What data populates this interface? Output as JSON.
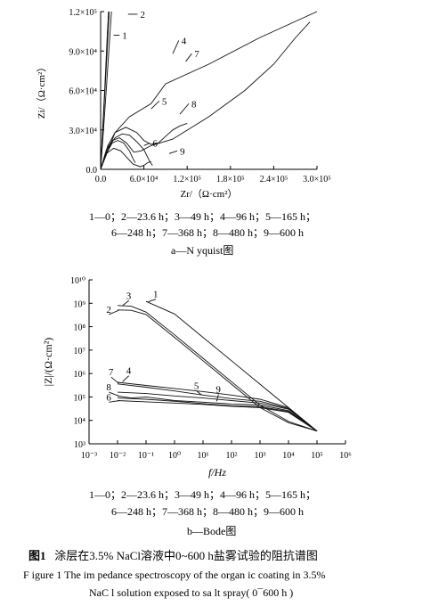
{
  "chart_data": [
    {
      "type": "line",
      "title": "a—N yquist图",
      "xlabel": "Zr/（Ω·cm²）",
      "ylabel": "Zi/（Ω·cm²）",
      "xlim": [
        0,
        300000
      ],
      "ylim": [
        0,
        120000
      ],
      "xticks": [
        "0.0",
        "6.0×10⁴",
        "1.2×10⁵",
        "1.8×10⁵",
        "2.4×10⁵",
        "3.0×10⁵"
      ],
      "yticks": [
        "0.0",
        "3.0×10⁴",
        "6.0×10⁴",
        "9.0×10⁴",
        "1.2×10⁵"
      ],
      "legend_lines": [
        "1—0；2—23.6 h；3—49 h；4—96 h；5—165 h；",
        "6—248 h；7—368 h；8—480 h；9—600 h"
      ],
      "series": [
        {
          "name": "1",
          "points": [
            [
              0,
              0
            ],
            [
              3000,
              30000
            ],
            [
              6000,
              60000
            ],
            [
              9000,
              90000
            ],
            [
              12000,
              120000
            ]
          ]
        },
        {
          "name": "2",
          "points": [
            [
              0,
              0
            ],
            [
              4000,
              30000
            ],
            [
              8000,
              62000
            ],
            [
              12000,
              95000
            ],
            [
              15000,
              120000
            ]
          ]
        },
        {
          "name": "3",
          "points": [
            [
              0,
              0
            ],
            [
              3000,
              32000
            ],
            [
              6000,
              65000
            ],
            [
              9000,
              100000
            ],
            [
              11000,
              120000
            ]
          ]
        },
        {
          "name": "4",
          "points": [
            [
              0,
              0
            ],
            [
              10000,
              14000
            ],
            [
              20000,
              28000
            ],
            [
              40000,
              40000
            ],
            [
              70000,
              50000
            ],
            [
              90000,
              65000
            ],
            [
              150000,
              80000
            ],
            [
              220000,
              100000
            ],
            [
              280000,
              115000
            ],
            [
              300000,
              120000
            ]
          ]
        },
        {
          "name": "5",
          "points": [
            [
              0,
              0
            ],
            [
              10000,
              16000
            ],
            [
              20000,
              24000
            ],
            [
              30000,
              27000
            ],
            [
              40000,
              26000
            ],
            [
              50000,
              21000
            ],
            [
              60000,
              15000
            ],
            [
              68000,
              6000
            ],
            [
              72000,
              3000
            ]
          ]
        },
        {
          "name": "6",
          "points": [
            [
              0,
              0
            ],
            [
              8000,
              12000
            ],
            [
              16000,
              20000
            ],
            [
              24000,
              22000
            ],
            [
              32000,
              20000
            ],
            [
              40000,
              14000
            ],
            [
              45000,
              8000
            ],
            [
              48000,
              5000
            ]
          ]
        },
        {
          "name": "7",
          "points": [
            [
              0,
              0
            ],
            [
              8000,
              15000
            ],
            [
              16000,
              22000
            ],
            [
              26000,
              24000
            ],
            [
              36000,
              20000
            ],
            [
              46000,
              13000
            ],
            [
              56000,
              14000
            ],
            [
              70000,
              18000
            ],
            [
              100000,
              23000
            ],
            [
              150000,
              40000
            ],
            [
              200000,
              60000
            ],
            [
              240000,
              80000
            ],
            [
              270000,
              100000
            ],
            [
              290000,
              112000
            ]
          ]
        },
        {
          "name": "8",
          "points": [
            [
              0,
              0
            ],
            [
              10000,
              18000
            ],
            [
              20000,
              28000
            ],
            [
              35000,
              32000
            ],
            [
              50000,
              28000
            ],
            [
              60000,
              22000
            ],
            [
              70000,
              19000
            ],
            [
              80000,
              20000
            ],
            [
              90000,
              25000
            ],
            [
              100000,
              30000
            ],
            [
              110000,
              33000
            ],
            [
              120000,
              35000
            ]
          ]
        },
        {
          "name": "9",
          "points": [
            [
              0,
              0
            ],
            [
              8000,
              12000
            ],
            [
              18000,
              16000
            ],
            [
              28000,
              14000
            ],
            [
              38000,
              8000
            ],
            [
              45000,
              4000
            ],
            [
              55000,
              2000
            ],
            [
              60000,
              3000
            ],
            [
              65000,
              5000
            ],
            [
              70000,
              6000
            ]
          ]
        }
      ]
    },
    {
      "type": "line",
      "title": "b—Bode图",
      "xlabel": "f/Hz",
      "ylabel": "|Z|/(Ω·cm²)",
      "log_x": true,
      "log_y": true,
      "xlim": [
        0.001,
        1000000
      ],
      "ylim": [
        1000,
        10000000000
      ],
      "xticks": [
        "10⁻³",
        "10⁻²",
        "10⁻¹",
        "10⁰",
        "10¹",
        "10²",
        "10³",
        "10⁴",
        "10⁵",
        "10⁶"
      ],
      "yticks": [
        "10³",
        "10⁴",
        "10⁵",
        "10⁶",
        "10⁷",
        "10⁸",
        "10⁹",
        "10¹⁰"
      ],
      "legend_lines": [
        "1—0；2—23.6 h；3—49 h；4—96 h；5—165 h；",
        "6—248 h；7—368 h；8—480 h；9—600 h"
      ],
      "series": [
        {
          "name": "1",
          "points": [
            [
              0.1,
              1200000000
            ],
            [
              1,
              350000000
            ],
            [
              10,
              35000000
            ],
            [
              100,
              3500000
            ],
            [
              1000,
              350000
            ],
            [
              10000,
              35000
            ],
            [
              100000,
              3500
            ]
          ]
        },
        {
          "name": "2",
          "points": [
            [
              0.01,
              520000000
            ],
            [
              0.03,
              500000000
            ],
            [
              0.1,
              330000000
            ],
            [
              1,
              35000000
            ],
            [
              10,
              3500000
            ],
            [
              100,
              350000
            ],
            [
              1000,
              35000
            ],
            [
              10000,
              8000
            ],
            [
              100000,
              3500
            ]
          ]
        },
        {
          "name": "3",
          "points": [
            [
              0.01,
              800000000
            ],
            [
              0.03,
              750000000
            ],
            [
              0.1,
              420000000
            ],
            [
              1,
              45000000
            ],
            [
              10,
              4500000
            ],
            [
              100,
              450000
            ],
            [
              1000,
              45000
            ],
            [
              10000,
              9000
            ],
            [
              100000,
              3500
            ]
          ]
        },
        {
          "name": "4",
          "points": [
            [
              0.01,
              420000
            ],
            [
              0.1,
              310000
            ],
            [
              1,
              230000
            ],
            [
              10,
              170000
            ],
            [
              100,
              120000
            ],
            [
              1000,
              80000
            ],
            [
              10000,
              35000
            ],
            [
              100000,
              3500
            ]
          ]
        },
        {
          "name": "5",
          "points": [
            [
              0.01,
              160000
            ],
            [
              0.1,
              140000
            ],
            [
              1,
              110000
            ],
            [
              10,
              90000
            ],
            [
              100,
              70000
            ],
            [
              1000,
              55000
            ],
            [
              10000,
              30000
            ],
            [
              100000,
              3500
            ]
          ]
        },
        {
          "name": "6",
          "points": [
            [
              0.01,
              70000
            ],
            [
              0.1,
              62000
            ],
            [
              1,
              55000
            ],
            [
              10,
              48000
            ],
            [
              100,
              40000
            ],
            [
              1000,
              35000
            ],
            [
              10000,
              22000
            ],
            [
              100000,
              3500
            ]
          ]
        },
        {
          "name": "7",
          "points": [
            [
              0.01,
              360000
            ],
            [
              0.1,
              260000
            ],
            [
              1,
              180000
            ],
            [
              10,
              120000
            ],
            [
              100,
              85000
            ],
            [
              1000,
              65000
            ],
            [
              10000,
              32000
            ],
            [
              100000,
              3500
            ]
          ]
        },
        {
          "name": "8",
          "points": [
            [
              0.01,
              110000
            ],
            [
              0.03,
              90000
            ],
            [
              0.1,
              100000
            ],
            [
              1,
              70000
            ],
            [
              10,
              60000
            ],
            [
              100,
              50000
            ],
            [
              1000,
              45000
            ],
            [
              10000,
              26000
            ],
            [
              100000,
              3500
            ]
          ]
        },
        {
          "name": "9",
          "points": [
            [
              0.01,
              90000
            ],
            [
              0.1,
              80000
            ],
            [
              1,
              65000
            ],
            [
              10,
              52000
            ],
            [
              100,
              42000
            ],
            [
              1000,
              38000
            ],
            [
              10000,
              24000
            ],
            [
              100000,
              3500
            ]
          ]
        }
      ]
    }
  ],
  "caption": {
    "cn_prefix": "图1",
    "cn_text": "涂层在3.5% NaCl溶液中0~600 h盐雾试验的阻抗谱图",
    "en_line1": "F igure 1   The im pedance spectroscopy of the organ ic coating in 3.5%",
    "en_line2": "NaC l solution exposed to sa lt spray( 0¯600 h )"
  }
}
